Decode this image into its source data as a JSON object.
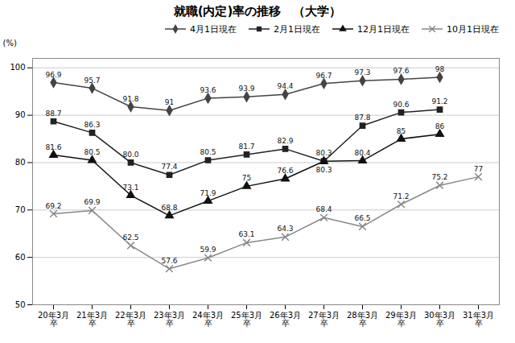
{
  "chart_data": {
    "type": "line",
    "title": "就職(内定)率の推移　（大学）",
    "ylabel": "(%)",
    "categories": [
      "20年3月\n卒",
      "21年3月\n卒",
      "22年3月\n卒",
      "23年3月\n卒",
      "24年3月\n卒",
      "25年3月\n卒",
      "26年3月\n卒",
      "27年3月\n卒",
      "28年3月\n卒",
      "29年3月\n卒",
      "30年3月\n卒",
      "31年3月\n卒"
    ],
    "series": [
      {
        "name": "4月1日現在",
        "color": "#444444",
        "marker": "diamond",
        "values": [
          96.9,
          95.7,
          91.8,
          91.0,
          93.6,
          93.9,
          94.4,
          96.7,
          97.3,
          97.6,
          98.0,
          null
        ]
      },
      {
        "name": "2月1日現在",
        "color": "#222222",
        "marker": "square",
        "values": [
          88.7,
          86.3,
          80.0,
          77.4,
          80.5,
          81.7,
          82.9,
          80.3,
          87.8,
          90.6,
          91.2,
          null
        ],
        "value_labels": [
          "88.7",
          "86.3",
          "80.0",
          "77.4",
          "80.5",
          "81.7",
          "82.9",
          "80.3",
          "87.8",
          "90.6",
          "91.2",
          null
        ]
      },
      {
        "name": "12月1日現在",
        "color": "#111111",
        "marker": "triangle",
        "values": [
          81.6,
          80.5,
          73.1,
          68.8,
          71.9,
          75.0,
          76.6,
          80.3,
          80.4,
          85.0,
          86.0,
          null
        ]
      },
      {
        "name": "10月1日現在",
        "color": "#888888",
        "marker": "x",
        "values": [
          69.2,
          69.9,
          62.5,
          57.6,
          59.9,
          63.1,
          64.3,
          68.4,
          66.5,
          71.2,
          75.2,
          77.0
        ]
      }
    ],
    "ylim": [
      50,
      102
    ],
    "yticks": [
      50,
      60,
      70,
      80,
      90,
      100
    ],
    "grid": true,
    "legend": "upper right",
    "data_labels": true
  }
}
